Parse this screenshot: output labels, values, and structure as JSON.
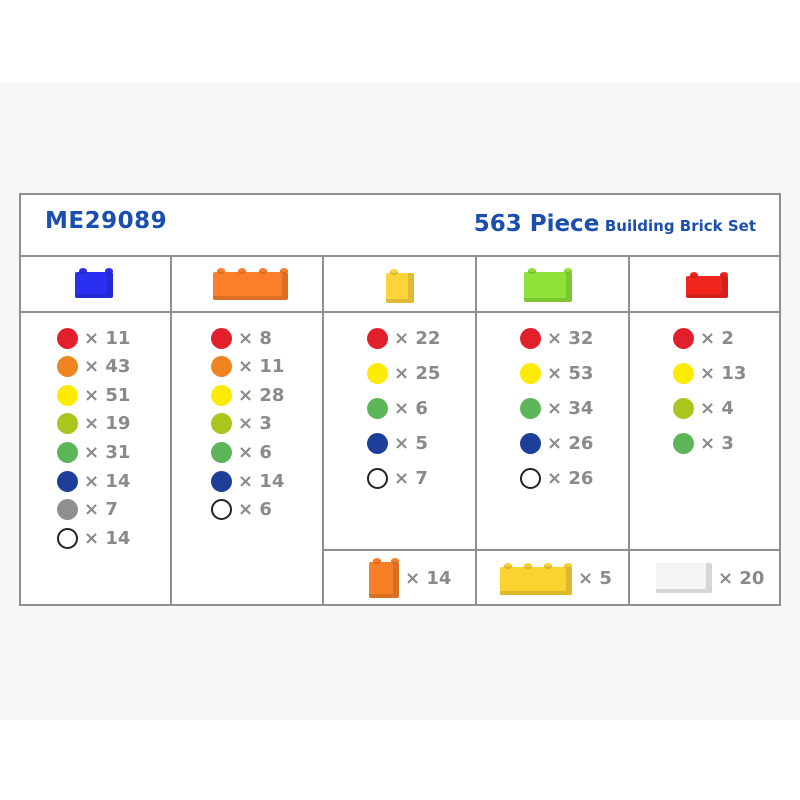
{
  "header": {
    "code": "ME29089",
    "title_big": "563 Piece",
    "title_small": "Building Brick Set"
  },
  "colors": {
    "red": "#e2202c",
    "orange": "#ef8420",
    "yellow": "#fdea05",
    "lime": "#a9c61f",
    "green": "#5db55a",
    "navy": "#1d3f99",
    "gray": "#8f8f8f",
    "white": "#ffffff"
  },
  "columns": [
    {
      "brick": "blue 2x2 brick",
      "brick_color": "#2a2ff0",
      "items": [
        {
          "color": "red",
          "label": "× 11"
        },
        {
          "color": "orange",
          "label": "× 43"
        },
        {
          "color": "yellow",
          "label": "× 51"
        },
        {
          "color": "lime",
          "label": "× 19"
        },
        {
          "color": "green",
          "label": "× 31"
        },
        {
          "color": "navy",
          "label": "× 14"
        },
        {
          "color": "gray",
          "label": "× 7"
        },
        {
          "color": "white",
          "label": "× 14"
        }
      ]
    },
    {
      "brick": "orange 2x4 brick",
      "brick_color": "#fb7f2a",
      "items": [
        {
          "color": "red",
          "label": "× 8"
        },
        {
          "color": "orange",
          "label": "× 11"
        },
        {
          "color": "yellow",
          "label": "× 28"
        },
        {
          "color": "lime",
          "label": "× 3"
        },
        {
          "color": "green",
          "label": "× 6"
        },
        {
          "color": "navy",
          "label": "× 14"
        },
        {
          "color": "white",
          "label": "× 6"
        }
      ]
    },
    {
      "brick": "yellow 1x1 brick",
      "brick_color": "#fdd53a",
      "items": [
        {
          "color": "red",
          "label": "× 22"
        },
        {
          "color": "yellow",
          "label": "× 25"
        },
        {
          "color": "green",
          "label": "× 6"
        },
        {
          "color": "navy",
          "label": "× 5"
        },
        {
          "color": "white",
          "label": "× 7"
        }
      ]
    },
    {
      "brick": "lime 1x2 brick",
      "brick_color": "#8ee23a",
      "items": [
        {
          "color": "red",
          "label": "× 32"
        },
        {
          "color": "yellow",
          "label": "× 53"
        },
        {
          "color": "green",
          "label": "× 34"
        },
        {
          "color": "navy",
          "label": "× 26"
        },
        {
          "color": "white",
          "label": "× 26"
        }
      ]
    },
    {
      "brick": "red 2x2 plate",
      "brick_color": "#f0261e",
      "items": [
        {
          "color": "red",
          "label": "× 2"
        },
        {
          "color": "yellow",
          "label": "× 13"
        },
        {
          "color": "lime",
          "label": "× 4"
        },
        {
          "color": "green",
          "label": "× 3"
        }
      ]
    }
  ],
  "extras": [
    {
      "brick": "orange 1x2 tall brick",
      "brick_color": "#f77f28",
      "label": "× 14"
    },
    {
      "brick": "yellow 2x4 plate",
      "brick_color": "#fbd230",
      "label": "× 5"
    },
    {
      "brick": "white flat tile",
      "brick_color": "#f4f4f6",
      "label": "× 20"
    }
  ]
}
